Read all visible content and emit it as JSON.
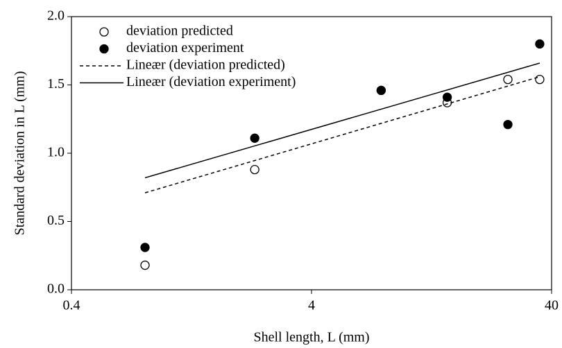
{
  "chart_data": {
    "type": "scatter",
    "x_label": "Shell length, L (mm)",
    "y_label": "Standard deviation in L (mm)",
    "xscale": "log",
    "xlim": [
      0.4,
      40
    ],
    "xticks": [
      0.4,
      4,
      40
    ],
    "ylim": [
      0,
      2
    ],
    "yticks": [
      {
        "value": 0,
        "label": "0.0"
      },
      {
        "value": 0.5,
        "label": "0.5"
      },
      {
        "value": 1,
        "label": "1.0"
      },
      {
        "value": 1.5,
        "label": "1.5"
      },
      {
        "value": 2,
        "label": "2.0"
      }
    ],
    "legend": "top-left",
    "series": [
      {
        "name": "deviation predicted",
        "kind": "open",
        "color": "#000000",
        "x": [
          0.81,
          2.32,
          7.8,
          14.7,
          26.3,
          35.7
        ],
        "values": [
          0.18,
          0.88,
          1.46,
          1.37,
          1.54,
          1.54
        ]
      },
      {
        "name": "deviation experiment",
        "kind": "filled",
        "color": "#000000",
        "x": [
          0.81,
          2.32,
          7.8,
          14.7,
          26.3,
          35.7
        ],
        "values": [
          0.31,
          1.11,
          1.46,
          1.41,
          1.21,
          1.8
        ]
      },
      {
        "name": "Lineær (deviation predicted)",
        "kind": "dashed",
        "color": "#000000",
        "x": [
          0.81,
          35.7
        ],
        "values": [
          0.71,
          1.56
        ]
      },
      {
        "name": "Lineær (deviation experiment)",
        "kind": "solid",
        "color": "#000000",
        "x": [
          0.81,
          35.7
        ],
        "values": [
          0.82,
          1.66
        ]
      }
    ]
  }
}
